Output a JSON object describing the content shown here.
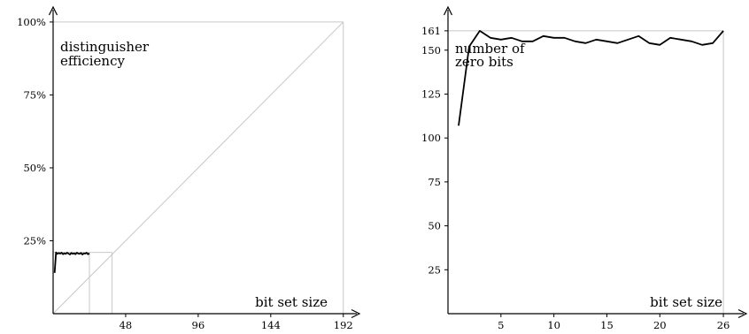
{
  "chart_data": [
    {
      "type": "line",
      "title": "",
      "annotation_lines": [
        "distinguisher",
        "efficiency"
      ],
      "xlabel": "bit set size",
      "ylabel": "",
      "xlim": [
        0,
        198
      ],
      "ylim": [
        0,
        103
      ],
      "x_ticks": [
        48,
        96,
        144,
        192
      ],
      "x_tick_labels": [
        "48",
        "96",
        "144",
        "192"
      ],
      "y_ticks": [
        25,
        50,
        75,
        100
      ],
      "y_tick_labels": [
        "25%",
        "50%",
        "75%",
        "100%"
      ],
      "reference_lines": [
        {
          "kind": "diagonal",
          "from": [
            0,
            0
          ],
          "to": [
            192,
            100
          ]
        },
        {
          "kind": "vertical",
          "x": 192,
          "y_from": 0,
          "y_to": 100
        },
        {
          "kind": "horizontal",
          "y": 100,
          "x_from": 0,
          "x_to": 192
        },
        {
          "kind": "vertical",
          "x": 24,
          "y_from": 0,
          "y_to": 21
        },
        {
          "kind": "vertical",
          "x": 39,
          "y_from": 0,
          "y_to": 21
        },
        {
          "kind": "horizontal",
          "y": 21,
          "x_from": 0,
          "x_to": 39
        }
      ],
      "series": [
        {
          "x": [
            1,
            2,
            3,
            4,
            5,
            6,
            7,
            8,
            9,
            10,
            11,
            12,
            13,
            14,
            15,
            16,
            17,
            18,
            19,
            20,
            21,
            22,
            23,
            24,
            25,
            26
          ],
          "values": [
            14,
            21,
            20.5,
            20.8,
            20.6,
            20.9,
            20.4,
            20.7,
            20.5,
            20.9,
            20.6,
            20.3,
            20.8,
            20.5,
            20.7,
            20.4,
            20.9,
            20.6,
            20.5,
            20.8,
            20.3,
            20.7,
            20.6,
            20.9,
            20.4,
            20.7
          ]
        }
      ]
    },
    {
      "type": "line",
      "title": "",
      "annotation_lines": [
        "number of",
        "zero bits"
      ],
      "xlabel": "bit set size",
      "ylabel": "",
      "xlim": [
        0,
        27.5
      ],
      "ylim": [
        0,
        171
      ],
      "x_ticks": [
        5,
        10,
        15,
        20,
        26
      ],
      "x_tick_labels": [
        "5",
        "10",
        "15",
        "20",
        "26"
      ],
      "y_ticks": [
        25,
        50,
        75,
        100,
        125,
        150,
        161
      ],
      "y_tick_labels": [
        "25",
        "50",
        "75",
        "100",
        "125",
        "150",
        "161"
      ],
      "reference_lines": [
        {
          "kind": "horizontal",
          "y": 161,
          "x_from": 0,
          "x_to": 26
        },
        {
          "kind": "vertical",
          "x": 26,
          "y_from": 0,
          "y_to": 161
        }
      ],
      "series": [
        {
          "x": [
            1,
            2,
            3,
            4,
            5,
            6,
            7,
            8,
            9,
            10,
            11,
            12,
            13,
            14,
            15,
            16,
            17,
            18,
            19,
            20,
            21,
            22,
            23,
            24,
            25,
            26
          ],
          "values": [
            107,
            152,
            161,
            157,
            156,
            157,
            155,
            155,
            158,
            157,
            157,
            155,
            154,
            156,
            155,
            154,
            156,
            158,
            154,
            153,
            157,
            156,
            155,
            153,
            154,
            161
          ]
        }
      ]
    }
  ]
}
